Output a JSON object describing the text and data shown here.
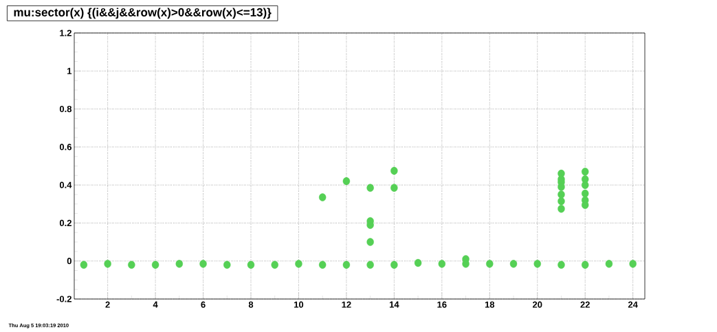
{
  "chart_data": {
    "type": "scatter",
    "title": "mu:sector(x) {(i&&j&&row(x)>0&&row(x)<=13)}",
    "annotations": [
      "Thu Aug  5 19:03:19 2010"
    ],
    "x": [
      1,
      2,
      3,
      4,
      5,
      6,
      7,
      8,
      9,
      10,
      11,
      11,
      12,
      12,
      13,
      13,
      13,
      13,
      13,
      14,
      14,
      14,
      15,
      16,
      17,
      17,
      18,
      19,
      20,
      21,
      21,
      21,
      21,
      21,
      21,
      21,
      21,
      22,
      22,
      22,
      22,
      22,
      22,
      22,
      23,
      24
    ],
    "values": [
      -0.02,
      -0.015,
      -0.02,
      -0.02,
      -0.015,
      -0.015,
      -0.02,
      -0.02,
      -0.02,
      -0.015,
      0.335,
      -0.02,
      0.42,
      -0.02,
      0.385,
      0.21,
      0.19,
      0.1,
      -0.02,
      0.475,
      0.385,
      -0.02,
      -0.01,
      -0.015,
      0.01,
      -0.015,
      -0.015,
      -0.015,
      -0.015,
      0.46,
      0.43,
      0.415,
      0.39,
      0.35,
      0.315,
      0.275,
      -0.02,
      0.47,
      0.43,
      0.4,
      0.355,
      0.32,
      0.295,
      -0.02,
      -0.015,
      -0.015
    ],
    "color": "#55d055",
    "marker": "circle",
    "grid": true,
    "xlim": [
      0.6,
      24.5
    ],
    "ylim": [
      -0.2,
      1.2
    ],
    "xticks": [
      2,
      4,
      6,
      8,
      10,
      12,
      14,
      16,
      18,
      20,
      22,
      24
    ],
    "yticks": [
      -0.2,
      0,
      0.2,
      0.4,
      0.6,
      0.8,
      1,
      1.2
    ]
  }
}
